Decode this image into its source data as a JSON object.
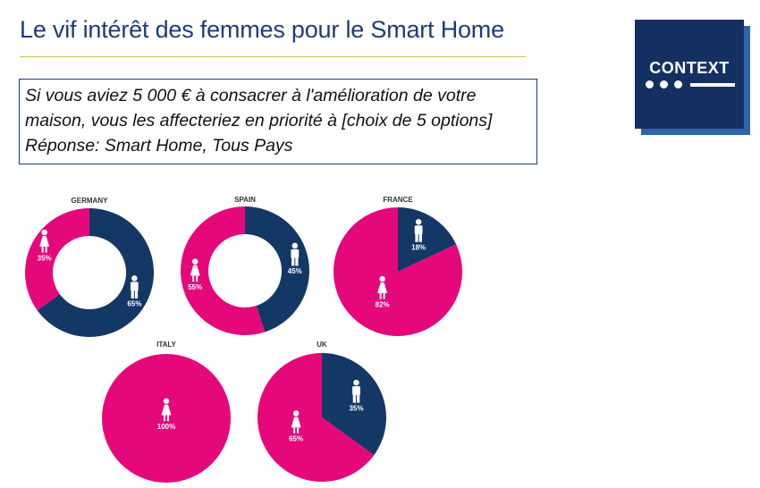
{
  "header": {
    "title": "Le vif intérêt des femmes pour le Smart Home"
  },
  "question": {
    "lines": [
      "Si vous aviez 5 000 € à consacrer à l'amélioration de votre",
      "maison, vous les affecteriez en priorité à [choix de 5 options]",
      "Réponse: Smart Home, Tous Pays"
    ]
  },
  "logo": {
    "text": "CONTEXT"
  },
  "colors": {
    "women": "#e5087b",
    "men": "#143865",
    "brand": "#143063"
  },
  "icons": {
    "women": "woman-icon",
    "men": "man-icon"
  },
  "chart_data": [
    {
      "type": "pie",
      "style": "donut",
      "title": "GERMANY",
      "categories": [
        "women",
        "men"
      ],
      "values": [
        35,
        65
      ],
      "labels": [
        "35%",
        "65%"
      ]
    },
    {
      "type": "pie",
      "style": "donut",
      "title": "SPAIN",
      "categories": [
        "women",
        "men"
      ],
      "values": [
        55,
        45
      ],
      "labels": [
        "55%",
        "45%"
      ]
    },
    {
      "type": "pie",
      "style": "pie",
      "title": "FRANCE",
      "categories": [
        "women",
        "men"
      ],
      "values": [
        82,
        18
      ],
      "labels": [
        "82%",
        "18%"
      ]
    },
    {
      "type": "pie",
      "style": "pie",
      "title": "ITALY",
      "categories": [
        "women",
        "men"
      ],
      "values": [
        100,
        0
      ],
      "labels": [
        "100%",
        ""
      ]
    },
    {
      "type": "pie",
      "style": "pie",
      "title": "UK",
      "categories": [
        "women",
        "men"
      ],
      "values": [
        65,
        35
      ],
      "labels": [
        "65%",
        "35%"
      ]
    }
  ]
}
